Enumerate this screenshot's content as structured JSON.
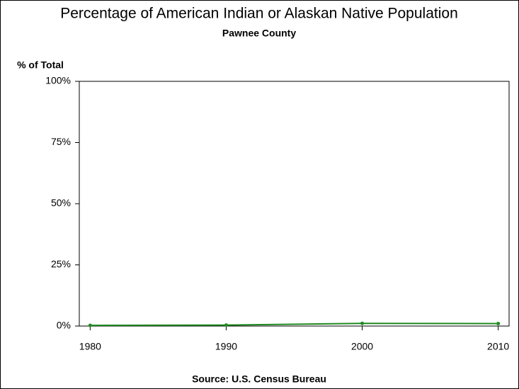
{
  "chart_data": {
    "type": "line",
    "title": "Percentage of American Indian or Alaskan Native Population",
    "subtitle": "Pawnee County",
    "y_label": "% of Total",
    "source": "Source: U.S. Census Bureau",
    "x": [
      1980,
      1990,
      2000,
      2010
    ],
    "series": [
      {
        "color": "#1f8a1f",
        "values": [
          0.3,
          0.4,
          1.1,
          1.0
        ]
      }
    ],
    "xlim": [
      1979.2,
      2010.8
    ],
    "xticks": [
      1980,
      1990,
      2000,
      2010
    ],
    "ylim": [
      0,
      100
    ],
    "yticks": [
      {
        "value": 0,
        "label": "0%"
      },
      {
        "value": 25,
        "label": "25%"
      },
      {
        "value": 50,
        "label": "50%"
      },
      {
        "value": 75,
        "label": "75%"
      },
      {
        "value": 100,
        "label": "100%"
      }
    ]
  }
}
